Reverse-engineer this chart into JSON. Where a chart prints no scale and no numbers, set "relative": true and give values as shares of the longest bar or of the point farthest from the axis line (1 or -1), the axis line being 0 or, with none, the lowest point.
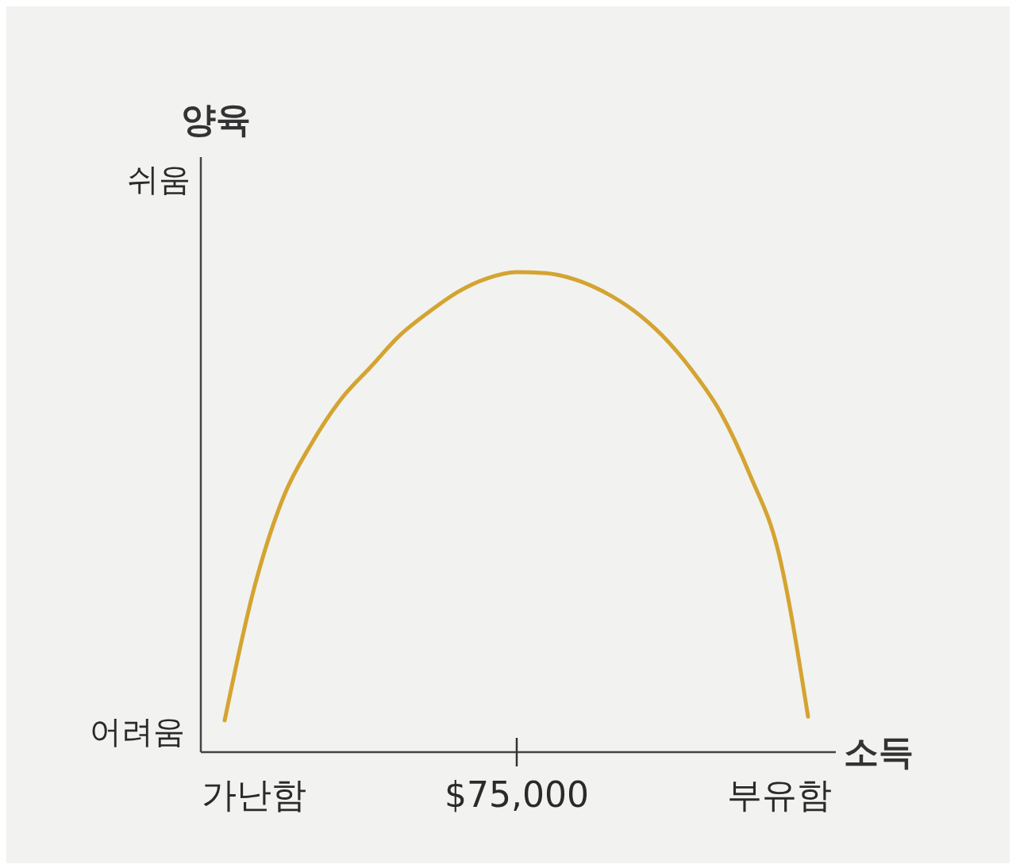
{
  "chart_data": {
    "type": "line",
    "relative": true,
    "xlabel": "소득",
    "ylabel": "양육",
    "annotations": [
      "쉬움",
      "어려움"
    ],
    "categories": [
      null,
      "가난함",
      null,
      null,
      null,
      null,
      null,
      null,
      null,
      null,
      "$75,000",
      null,
      null,
      null,
      null,
      null,
      null,
      null,
      null,
      "부유함",
      null
    ],
    "values": [
      0.066,
      0.339,
      0.529,
      0.645,
      0.736,
      0.802,
      0.868,
      0.917,
      0.959,
      0.987,
      1,
      0.998,
      0.985,
      0.959,
      0.921,
      0.868,
      0.797,
      0.708,
      0.579,
      0.413,
      0.074
    ],
    "color": "#d4a431"
  }
}
